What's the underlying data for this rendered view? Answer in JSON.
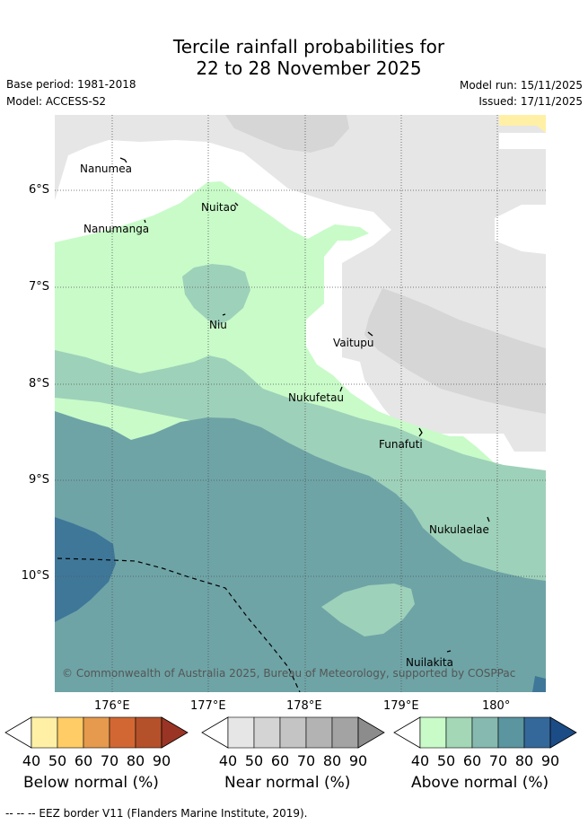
{
  "title_line1": "Tercile rainfall probabilities for",
  "title_line2": "22 to 28 November 2025",
  "base_period": "Base period: 1981-2018",
  "model": "Model: ACCESS-S2",
  "model_run": "Model run: 15/11/2025",
  "issued": "Issued: 17/11/2025",
  "latitudes": [
    "6°S",
    "7°S",
    "8°S",
    "9°S",
    "10°S"
  ],
  "longitudes": [
    "176°E",
    "177°E",
    "178°E",
    "179°E",
    "180°"
  ],
  "islands": [
    "Nanumea",
    "Nanumanga",
    "Nuitao",
    "Niu",
    "Vaitupu",
    "Nukufetau",
    "Funafuti",
    "Nukulaelae",
    "Nuilakita"
  ],
  "copyright": "© Commonwealth of Australia 2025, Bureau of Meteorology, supported by COSPPac",
  "colorbars": [
    {
      "title": "Below normal (%)",
      "ticks": [
        "40",
        "50",
        "60",
        "70",
        "80",
        "90"
      ],
      "colors": [
        "#fff0a6",
        "#ffcc66",
        "#e59a4d",
        "#d26733",
        "#b4512b",
        "#9a3525"
      ]
    },
    {
      "title": "Near normal (%)",
      "ticks": [
        "40",
        "50",
        "60",
        "70",
        "80",
        "90"
      ],
      "colors": [
        "#e6e6e6",
        "#d4d4d4",
        "#c4c4c4",
        "#b3b3b3",
        "#a3a3a3",
        "#8c8c8c"
      ]
    },
    {
      "title": "Above normal (%)",
      "ticks": [
        "40",
        "50",
        "60",
        "70",
        "80",
        "90"
      ],
      "colors": [
        "#c8fbc8",
        "#a3d7b6",
        "#86b9b0",
        "#5a95a0",
        "#35689a",
        "#1c4c86"
      ]
    }
  ],
  "legend_note": "-- -- -- EEZ border V11 (Flanders Marine Institute, 2019)."
}
